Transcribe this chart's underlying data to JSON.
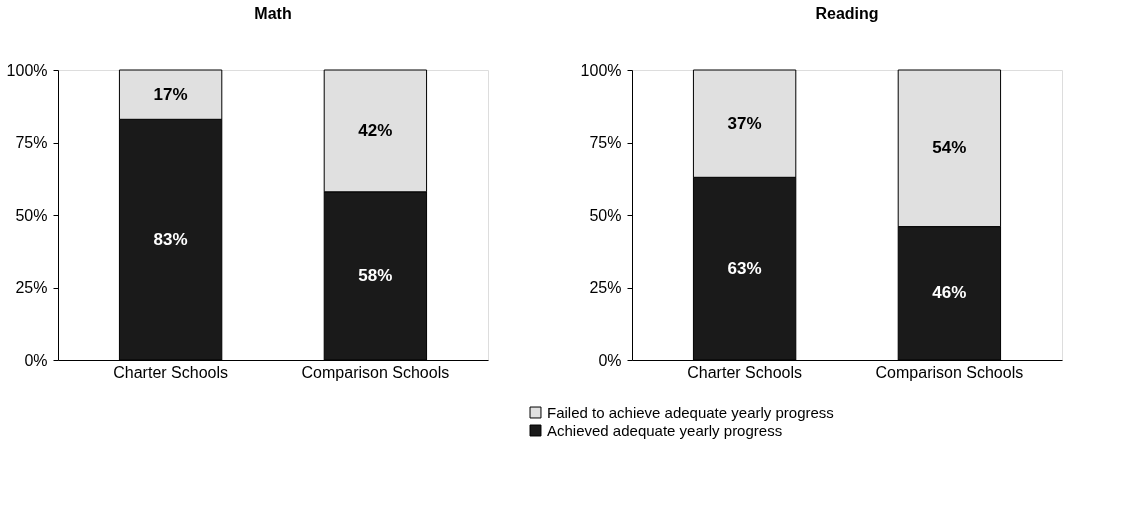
{
  "chart_data": [
    {
      "type": "bar",
      "title": "Math",
      "categories": [
        "Charter Schools",
        "Comparison Schools"
      ],
      "stacked": true,
      "legend": "bottom",
      "grid": false,
      "ylim": [
        0,
        100
      ],
      "yticks": [
        {
          "value": 0,
          "label": "0%"
        },
        {
          "value": 25,
          "label": "25%"
        },
        {
          "value": 50,
          "label": "50%"
        },
        {
          "value": 75,
          "label": "75%"
        },
        {
          "value": 100,
          "label": "100%"
        }
      ],
      "series": [
        {
          "name": "Achieved adequate yearly progress",
          "color": "#1a1a1a",
          "values": [
            83,
            58
          ],
          "value_labels": [
            "83%",
            "58%"
          ]
        },
        {
          "name": "Failed to achieve adequate yearly progress",
          "color": "#e0e0e0",
          "values": [
            17,
            42
          ],
          "value_labels": [
            "17%",
            "42%"
          ]
        }
      ]
    },
    {
      "type": "bar",
      "title": "Reading",
      "categories": [
        "Charter Schools",
        "Comparison Schools"
      ],
      "stacked": true,
      "legend": "bottom",
      "grid": false,
      "ylim": [
        0,
        100
      ],
      "yticks": [
        {
          "value": 0,
          "label": "0%"
        },
        {
          "value": 25,
          "label": "25%"
        },
        {
          "value": 50,
          "label": "50%"
        },
        {
          "value": 75,
          "label": "75%"
        },
        {
          "value": 100,
          "label": "100%"
        }
      ],
      "series": [
        {
          "name": "Achieved adequate yearly progress",
          "color": "#1a1a1a",
          "values": [
            63,
            46
          ],
          "value_labels": [
            "63%",
            "46%"
          ]
        },
        {
          "name": "Failed to achieve adequate yearly progress",
          "color": "#e0e0e0",
          "values": [
            37,
            54
          ],
          "value_labels": [
            "37%",
            "54%"
          ]
        }
      ]
    }
  ]
}
